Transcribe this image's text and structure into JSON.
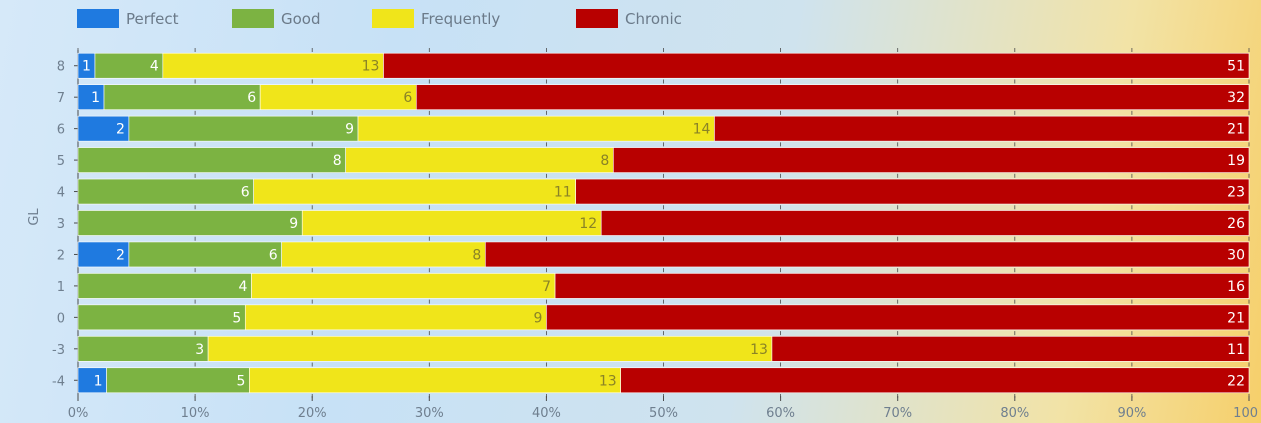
{
  "chart_data": {
    "type": "bar",
    "orientation": "horizontal",
    "stacked": "percent",
    "ylabel": "GL",
    "xlabel": "",
    "categories": [
      "8",
      "7",
      "6",
      "5",
      "4",
      "3",
      "2",
      "1",
      "0",
      "-3",
      "-4"
    ],
    "series": [
      {
        "name": "Perfect",
        "color": "#1f7ae0",
        "label_color": "#ffffff",
        "values": [
          1,
          1,
          2,
          0,
          0,
          0,
          2,
          0,
          0,
          0,
          1
        ]
      },
      {
        "name": "Good",
        "color": "#7cb342",
        "label_color": "#ffffff",
        "values": [
          4,
          6,
          9,
          8,
          6,
          9,
          6,
          4,
          5,
          3,
          5
        ]
      },
      {
        "name": "Frequently",
        "color": "#f0e51a",
        "label_color": "#8a8326",
        "values": [
          13,
          6,
          14,
          8,
          11,
          12,
          8,
          7,
          9,
          13,
          13
        ]
      },
      {
        "name": "Chronic",
        "color": "#b80000",
        "label_color": "#ffffff",
        "values": [
          51,
          32,
          21,
          19,
          23,
          26,
          30,
          16,
          21,
          11,
          22
        ]
      }
    ],
    "xlim": [
      0,
      100
    ],
    "x_ticks": [
      "0%",
      "10%",
      "20%",
      "30%",
      "40%",
      "50%",
      "60%",
      "70%",
      "80%",
      "90%",
      "100"
    ],
    "grid": false,
    "legend_position": "top-left"
  }
}
